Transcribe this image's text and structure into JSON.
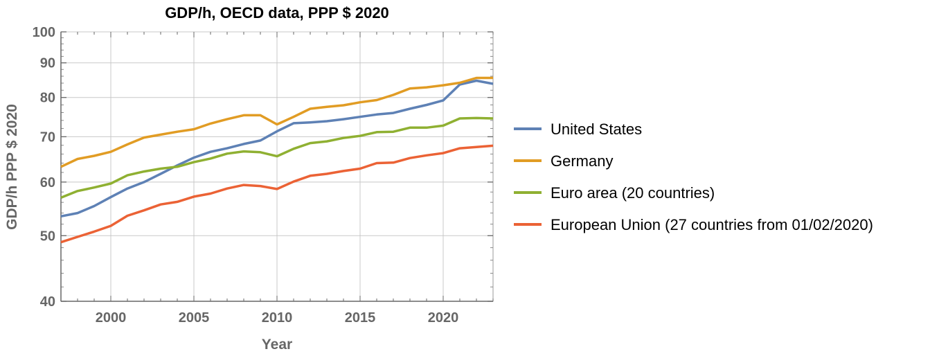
{
  "chart_data": {
    "type": "line",
    "title": "GDP/h, OECD data, PPP $ 2020",
    "xlabel": "Year",
    "ylabel": "GDP/h PPP $ 2020",
    "xlim": [
      1997,
      2023
    ],
    "ylim": [
      40,
      100
    ],
    "yscale": "log",
    "grid": true,
    "legend_placement": "right",
    "xticks": [
      2000,
      2005,
      2010,
      2015,
      2020
    ],
    "yticks": [
      40,
      50,
      60,
      70,
      80,
      90,
      100
    ],
    "x": [
      1997,
      1998,
      1999,
      2000,
      2001,
      2002,
      2003,
      2004,
      2005,
      2006,
      2007,
      2008,
      2009,
      2010,
      2011,
      2012,
      2013,
      2014,
      2015,
      2016,
      2017,
      2018,
      2019,
      2020,
      2021,
      2022,
      2023
    ],
    "series": [
      {
        "name": "United States",
        "color": "#5e81b5",
        "values": [
          53.4,
          54,
          55.3,
          57,
          58.7,
          60,
          61.7,
          63.5,
          65.2,
          66.5,
          67.3,
          68.3,
          69.1,
          71.3,
          73.3,
          73.5,
          73.8,
          74.3,
          74.9,
          75.5,
          75.9,
          77,
          78,
          79.2,
          83.6,
          84.7,
          83.8
        ]
      },
      {
        "name": "Germany",
        "color": "#e19c24",
        "values": [
          63.2,
          64.9,
          65.6,
          66.5,
          68.2,
          69.8,
          70.5,
          71.2,
          71.8,
          73.2,
          74.3,
          75.3,
          75.3,
          73,
          74.9,
          77,
          77.5,
          77.9,
          78.7,
          79.3,
          80.7,
          82.5,
          82.8,
          83.4,
          84.1,
          85.5,
          85.5
        ]
      },
      {
        "name": "Euro area (20 countries)",
        "color": "#8fb032",
        "values": [
          56.9,
          58.2,
          58.9,
          59.7,
          61.4,
          62.2,
          62.8,
          63.2,
          64.2,
          65,
          66.1,
          66.6,
          66.4,
          65.5,
          67.2,
          68.5,
          68.9,
          69.7,
          70.2,
          71.1,
          71.2,
          72.2,
          72.2,
          72.7,
          74.5,
          74.6,
          74.5
        ]
      },
      {
        "name": "European Union (27 countries from 01/02/2020)",
        "color": "#eb6235",
        "values": [
          48.9,
          49.8,
          50.7,
          51.7,
          53.5,
          54.5,
          55.6,
          56.1,
          57.1,
          57.7,
          58.7,
          59.4,
          59.2,
          58.6,
          60.1,
          61.3,
          61.7,
          62.3,
          62.8,
          64,
          64.1,
          65.1,
          65.7,
          66.2,
          67.3,
          67.6,
          67.9
        ]
      }
    ]
  }
}
